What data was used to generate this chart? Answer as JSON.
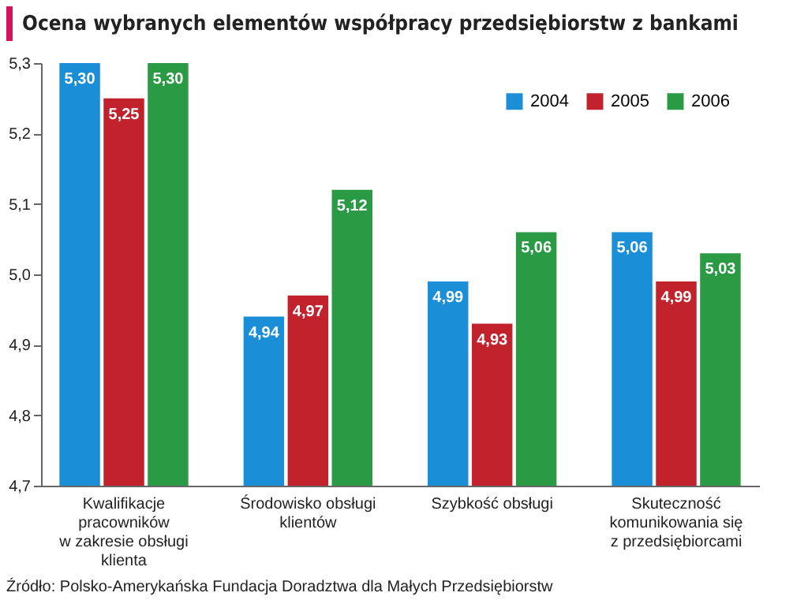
{
  "chart_data": {
    "type": "bar",
    "title": "Ocena wybranych elementów współpracy przedsiębiorstw z bankami",
    "categories": [
      "Kwalifikacje\npracowników\nw zakresie obsługi\nklienta",
      "Środowisko obsługi\nklientów",
      "Szybkość obsługi",
      "Skuteczność\nkomunikowania się\nz przedsiębiorcami"
    ],
    "series": [
      {
        "name": "2004",
        "color": "#1b8ed8",
        "values": [
          5.3,
          4.94,
          4.99,
          5.06
        ],
        "value_labels": [
          "5,30",
          "4,94",
          "4,99",
          "5,06"
        ]
      },
      {
        "name": "2005",
        "color": "#c1222b",
        "values": [
          5.25,
          4.97,
          4.93,
          4.99
        ],
        "value_labels": [
          "5,25",
          "4,97",
          "4,93",
          "4,99"
        ]
      },
      {
        "name": "2006",
        "color": "#2b9a45",
        "values": [
          5.3,
          5.12,
          5.06,
          5.03
        ],
        "value_labels": [
          "5,30",
          "5,12",
          "5,06",
          "5,03"
        ]
      }
    ],
    "ylim": [
      4.7,
      5.3
    ],
    "yticks": [
      {
        "value": 4.7,
        "label": "4,7"
      },
      {
        "value": 4.8,
        "label": "4,8"
      },
      {
        "value": 4.9,
        "label": "4,9"
      },
      {
        "value": 5.0,
        "label": "5,0"
      },
      {
        "value": 5.1,
        "label": "5,1"
      },
      {
        "value": 5.2,
        "label": "5,2"
      },
      {
        "value": 5.3,
        "label": "5,3"
      }
    ],
    "grid": false,
    "legend": "top right",
    "annotations": [
      "Źródło: Polsko-Amerykańska Fundacja Doradztwa dla Małych Przedsiębiorstw"
    ]
  }
}
